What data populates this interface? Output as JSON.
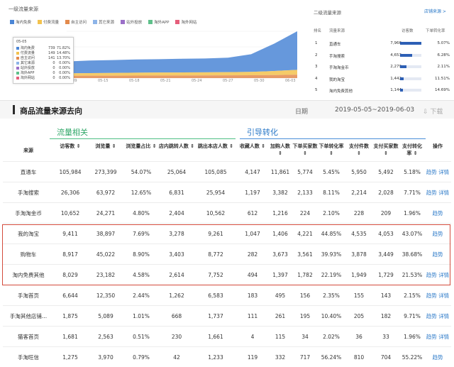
{
  "chart_panel": {
    "title": "一级流量来源",
    "legend": [
      {
        "label": "淘内免费",
        "color": "#4b86d6"
      },
      {
        "label": "付费流量",
        "color": "#f3c24d"
      },
      {
        "label": "自主访问",
        "color": "#e38a4c"
      },
      {
        "label": "其它来源",
        "color": "#8db4e8"
      },
      {
        "label": "站外投放",
        "color": "#9b6fc8"
      },
      {
        "label": "淘外APP",
        "color": "#5fc08b"
      },
      {
        "label": "淘外网站",
        "color": "#e55f7b"
      }
    ],
    "tooltip": {
      "date": "05-05",
      "rows": [
        {
          "name": "淘内免费",
          "value": "739",
          "pct": "71.82%",
          "color": "#4b86d6"
        },
        {
          "name": "付费流量",
          "value": "149",
          "pct": "14.48%",
          "color": "#f3c24d"
        },
        {
          "name": "自主访问",
          "value": "141",
          "pct": "13.70%",
          "color": "#e38a4c"
        },
        {
          "name": "其它来源",
          "value": "0",
          "pct": "0.00%",
          "color": "#8db4e8"
        },
        {
          "name": "站外投放",
          "value": "0",
          "pct": "0.00%",
          "color": "#9b6fc8"
        },
        {
          "name": "淘外APP",
          "value": "0",
          "pct": "0.00%",
          "color": "#5fc08b"
        },
        {
          "name": "淘外网站",
          "value": "0",
          "pct": "0.00%",
          "color": "#e55f7b"
        }
      ]
    },
    "x_labels": [
      "05-09",
      "05-15",
      "05-18",
      "05-21",
      "05-24",
      "05-27",
      "05-30",
      "06-03"
    ]
  },
  "chart_data": {
    "type": "area",
    "x": [
      "05-05",
      "05-08",
      "05-11",
      "05-14",
      "05-17",
      "05-20",
      "05-23",
      "05-26",
      "05-29",
      "06-01",
      "06-03"
    ],
    "series": [
      {
        "name": "淘内免费",
        "values": [
          739,
          780,
          800,
          820,
          830,
          850,
          860,
          900,
          1100,
          1700,
          2400
        ]
      },
      {
        "name": "付费流量",
        "values": [
          149,
          160,
          170,
          180,
          185,
          190,
          195,
          200,
          210,
          250,
          300
        ]
      },
      {
        "name": "自主访问",
        "values": [
          141,
          150,
          150,
          155,
          160,
          160,
          165,
          170,
          175,
          190,
          210
        ]
      }
    ],
    "title": "一级流量来源"
  },
  "rank_panel": {
    "title": "二级流量来源",
    "link": "店铺来源 >",
    "headers": {
      "rank": "排名",
      "source": "流量来源",
      "visitors": "访客数",
      "rate": "下单转化率"
    },
    "rows": [
      {
        "rank": "1",
        "source": "直通车",
        "visitors": "7,966",
        "rate": "5.07%",
        "fill": 1.0
      },
      {
        "rank": "2",
        "source": "手淘搜索",
        "visitors": "4,653",
        "rate": "6.28%",
        "fill": 0.58
      },
      {
        "rank": "3",
        "source": "手淘淘金币",
        "visitors": "2,279",
        "rate": "2.11%",
        "fill": 0.29
      },
      {
        "rank": "4",
        "source": "我的淘宝",
        "visitors": "1,442",
        "rate": "11.51%",
        "fill": 0.18
      },
      {
        "rank": "5",
        "source": "淘内免费其他",
        "visitors": "1,144",
        "rate": "14.69%",
        "fill": 0.14
      }
    ]
  },
  "section": {
    "title": "商品流量来源去向",
    "date_label": "日期",
    "date_range": "2019-05-05~2019-06-03",
    "download": "下载"
  },
  "table": {
    "group_traffic": "流量相关",
    "group_conversion": "引导转化",
    "headers": [
      "来源",
      "访客数",
      "浏览量",
      "浏览量占比",
      "店内跳转人数",
      "跳出本店人数",
      "收藏人数",
      "加购人数",
      "下单买家数",
      "下单转化率",
      "支付件数",
      "支付买家数",
      "支付转化率",
      "操作"
    ],
    "rows": [
      {
        "src": "直通车",
        "c": [
          "105,984",
          "273,399",
          "54.07%",
          "25,064",
          "105,085",
          "4,147",
          "11,861",
          "5,774",
          "5.45%",
          "5,950",
          "5,492",
          "5.18%"
        ],
        "ops": [
          "趋势",
          "详情"
        ]
      },
      {
        "src": "手淘搜索",
        "c": [
          "26,306",
          "63,972",
          "12.65%",
          "6,831",
          "25,954",
          "1,197",
          "3,382",
          "2,133",
          "8.11%",
          "2,214",
          "2,028",
          "7.71%"
        ],
        "ops": [
          "趋势",
          "详情"
        ]
      },
      {
        "src": "手淘淘金币",
        "c": [
          "10,652",
          "24,271",
          "4.80%",
          "2,404",
          "10,562",
          "612",
          "1,216",
          "224",
          "2.10%",
          "228",
          "209",
          "1.96%"
        ],
        "ops": [
          "趋势"
        ]
      },
      {
        "src": "我的淘宝",
        "c": [
          "9,411",
          "38,897",
          "7.69%",
          "3,278",
          "9,261",
          "1,047",
          "1,406",
          "4,221",
          "44.85%",
          "4,535",
          "4,053",
          "43.07%"
        ],
        "ops": [
          "趋势"
        ]
      },
      {
        "src": "购物车",
        "c": [
          "8,917",
          "45,022",
          "8.90%",
          "3,403",
          "8,772",
          "282",
          "3,673",
          "3,561",
          "39.93%",
          "3,878",
          "3,449",
          "38.68%"
        ],
        "ops": [
          "趋势"
        ]
      },
      {
        "src": "淘内免费其他",
        "c": [
          "8,029",
          "23,182",
          "4.58%",
          "2,614",
          "7,752",
          "494",
          "1,397",
          "1,782",
          "22.19%",
          "1,949",
          "1,729",
          "21.53%"
        ],
        "ops": [
          "趋势",
          "详情"
        ]
      },
      {
        "src": "手淘首页",
        "c": [
          "6,644",
          "12,350",
          "2.44%",
          "1,262",
          "6,583",
          "183",
          "495",
          "156",
          "2.35%",
          "155",
          "143",
          "2.15%"
        ],
        "ops": [
          "趋势",
          "详情"
        ]
      },
      {
        "src": "手淘其他店铺...",
        "c": [
          "1,875",
          "5,089",
          "1.01%",
          "668",
          "1,737",
          "111",
          "261",
          "195",
          "10.40%",
          "205",
          "182",
          "9.71%"
        ],
        "ops": [
          "趋势",
          "详情"
        ]
      },
      {
        "src": "猫客首页",
        "c": [
          "1,681",
          "2,563",
          "0.51%",
          "230",
          "1,661",
          "4",
          "115",
          "34",
          "2.02%",
          "36",
          "33",
          "1.96%"
        ],
        "ops": [
          "趋势",
          "详情"
        ]
      },
      {
        "src": "手淘旺信",
        "c": [
          "1,275",
          "3,970",
          "0.79%",
          "42",
          "1,233",
          "119",
          "332",
          "717",
          "56.24%",
          "810",
          "704",
          "55.22%"
        ],
        "ops": [
          "趋势"
        ]
      }
    ]
  }
}
